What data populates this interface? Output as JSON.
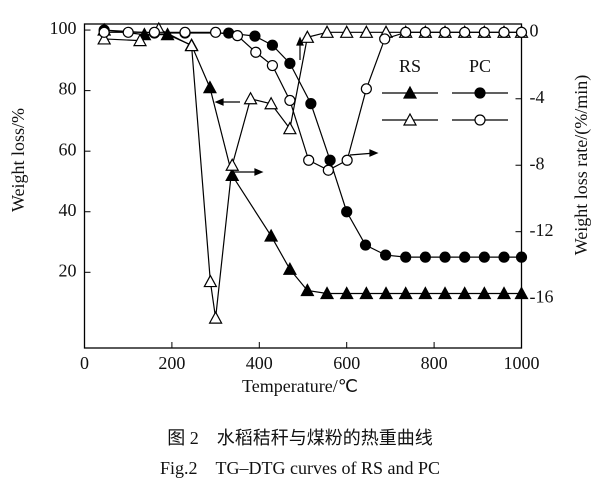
{
  "chart_data": {
    "type": "line",
    "xlabel": "Temperature/℃",
    "ylabel": "Weight loss/%",
    "y2label": "Weight loss rate/(%/min)",
    "caption_cn": "图 2　水稻秸秆与煤粉的热重曲线",
    "caption_en": "Fig.2　TG–DTG curves of RS and PC",
    "xlim": [
      0,
      1000
    ],
    "xticks": [
      0,
      200,
      400,
      600,
      800,
      1000
    ],
    "ylim": [
      -5,
      102
    ],
    "yticks": [
      20,
      40,
      60,
      80,
      100
    ],
    "y2lim": [
      -19,
      0.5
    ],
    "y2ticks": [
      0,
      -4,
      -8,
      -12,
      -16
    ],
    "series": [
      {
        "name": "RS",
        "color": "#000000",
        "marker": "triangle",
        "filled": true,
        "x": [
          45,
          137,
          190,
          245,
          287,
          338,
          427,
          470,
          510,
          555,
          600,
          645,
          690,
          735,
          780,
          825,
          870,
          915,
          960,
          1000
        ],
        "values": [
          100,
          98.5,
          98.5,
          95,
          81,
          52,
          32,
          21,
          14,
          13,
          13,
          13,
          13,
          13,
          13,
          13,
          13,
          13,
          13,
          13
        ]
      },
      {
        "name": "PC",
        "color": "#000000",
        "marker": "circle",
        "filled": true,
        "x": [
          45,
          160,
          230,
          330,
          390,
          430,
          470,
          518,
          562,
          600,
          643,
          689,
          735,
          780,
          825,
          870,
          915,
          960,
          1000
        ],
        "values": [
          100,
          99,
          99,
          99,
          98,
          95,
          89,
          75.7,
          57,
          40,
          29,
          25.7,
          25,
          25,
          25,
          25,
          25,
          25,
          25
        ]
      },
      {
        "color": "#000000",
        "marker": "triangle",
        "filled": false,
        "axis": "y2",
        "x": [
          45,
          127,
          170,
          245,
          288,
          300,
          338,
          380,
          427,
          470,
          510,
          555,
          600,
          645,
          690,
          735,
          780,
          825,
          870,
          915,
          960,
          1000
        ],
        "values": [
          -0.4,
          -0.5,
          0.2,
          -0.8,
          -15,
          -17.2,
          -8,
          -4,
          -4.3,
          -5.8,
          -0.3,
          0,
          0,
          0,
          0,
          0,
          0,
          0,
          0,
          0,
          0,
          0
        ]
      },
      {
        "color": "#000000",
        "marker": "circle",
        "filled": false,
        "axis": "y2",
        "x": [
          45,
          100,
          160,
          230,
          300,
          350,
          392,
          430,
          470,
          513,
          558,
          601,
          645,
          687,
          735,
          780,
          825,
          870,
          915,
          960,
          1000
        ],
        "values": [
          0,
          0,
          0,
          0,
          0,
          -0.2,
          -1.2,
          -2,
          -4.1,
          -7.7,
          -8.3,
          -7.7,
          -3.4,
          -0.4,
          0,
          0,
          0,
          0,
          0,
          0,
          0
        ]
      }
    ]
  }
}
